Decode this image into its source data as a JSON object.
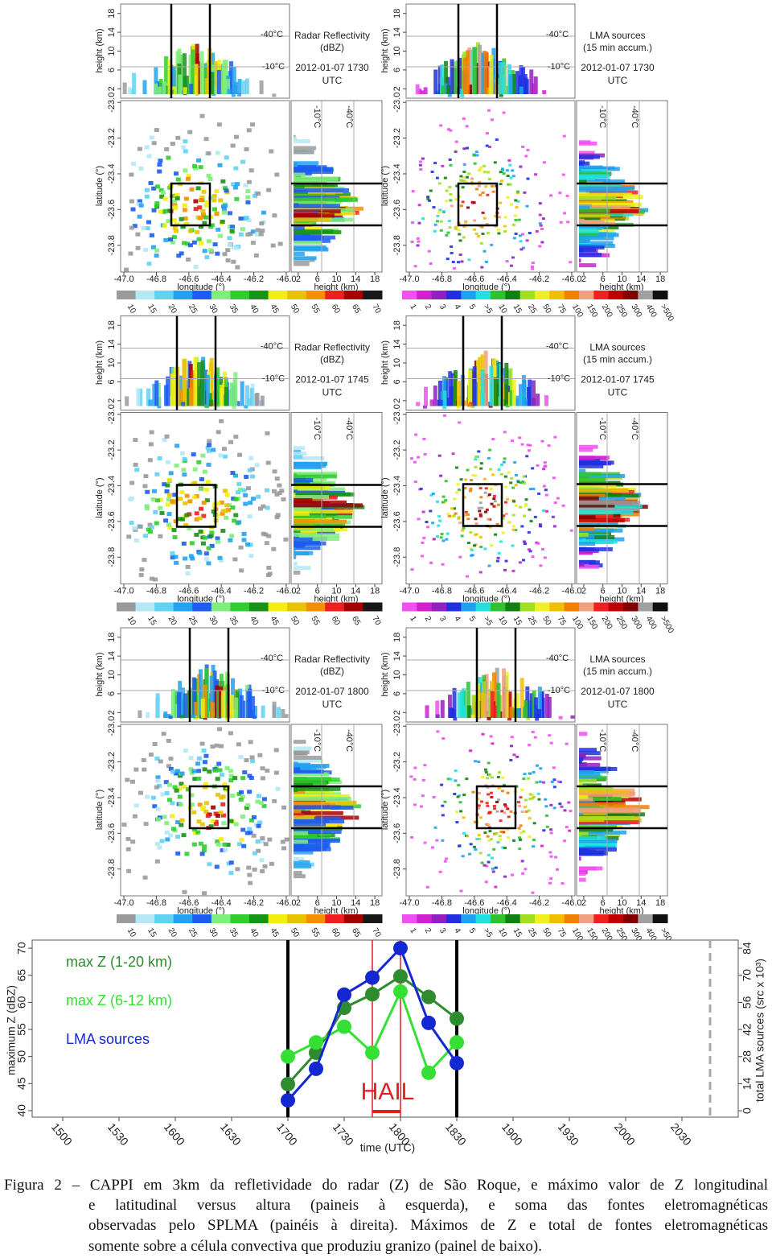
{
  "radar_panels": {
    "axes": {
      "height_label": "height (km)",
      "latitude_label": "latitude (°)",
      "longitude_label": "longitude (°)",
      "height_ticks": [
        2,
        6,
        10,
        14,
        18
      ],
      "height_lim": [
        0,
        20
      ],
      "height_xlim": [
        0.5,
        19.5
      ],
      "lat_ticks": [
        {
          "value": -23.0,
          "label": "-23.0"
        },
        -23.2,
        -23.4,
        -23.6,
        -23.8
      ],
      "lat_lim": [
        -23.95,
        -22.99
      ],
      "lon_ticks": [
        {
          "value": -47.0,
          "label": "-47.0"
        },
        -46.8,
        -46.6,
        -46.4,
        -46.2,
        {
          "value": -46.0,
          "label": "-46.0"
        }
      ],
      "lon_lim": [
        -47.02,
        -45.98
      ],
      "isotherm_warm": "-10°C",
      "isotherm_cold": "-40°C",
      "time_zone": "UTC"
    },
    "columns": [
      {
        "title": "Radar Reflectivity",
        "units": "(dBZ)",
        "colorbar_labels": [
          10,
          15,
          20,
          25,
          30,
          35,
          40,
          45,
          50,
          55,
          60,
          65,
          70
        ],
        "colorbar_colors": [
          "#9a9a9a",
          "#b4e8f4",
          "#62d2f2",
          "#22a2f0",
          "#1c5cf0",
          "#80ee7a",
          "#30cc30",
          "#169416",
          "#f2ee10",
          "#e8c400",
          "#f29000",
          "#f01e1e",
          "#a40000",
          "#181818"
        ]
      },
      {
        "title": "LMA sources",
        "units": "(15 min accum.)",
        "colorbar_labels": [
          1,
          2,
          3,
          4,
          5,
          ">5",
          10,
          15,
          25,
          50,
          75,
          100,
          150,
          200,
          250,
          300,
          400,
          ">500"
        ],
        "colorbar_colors": [
          "#f050f0",
          "#d020d0",
          "#9020c0",
          "#2030e0",
          "#20a0f0",
          "#20e0e0",
          "#30c030",
          "#108010",
          "#a0e020",
          "#f0f020",
          "#f0c000",
          "#f08000",
          "#f0a080",
          "#f02020",
          "#c00000",
          "#800000",
          "#a0a0a0",
          "#101010"
        ]
      }
    ],
    "rows": [
      {
        "time": "2012-01-07 1730"
      },
      {
        "time": "2012-01-07 1745"
      },
      {
        "time": "2012-01-07 1800"
      }
    ]
  },
  "chart_data": {
    "type": "line",
    "categories": [
      "1500",
      null,
      "1530",
      null,
      "1600",
      null,
      "1630",
      null,
      "1700",
      null,
      "1730",
      null,
      "1800",
      null,
      "1830",
      null,
      "1900",
      null,
      "1930",
      null,
      "2000",
      null,
      "2030",
      null
    ],
    "series": [
      {
        "name": "max Z (1-20 km)",
        "color": "#2e8b2e",
        "values": [
          null,
          null,
          null,
          null,
          null,
          null,
          null,
          null,
          44.9,
          50.7,
          59,
          61.5,
          64.8,
          61,
          57,
          null,
          null,
          null,
          null,
          null,
          null,
          null,
          null,
          null
        ]
      },
      {
        "name": "max Z (6-12 km)",
        "color": "#33e033",
        "values": [
          null,
          null,
          null,
          null,
          null,
          null,
          null,
          null,
          50,
          52.6,
          55.5,
          50.7,
          62,
          47,
          52.6,
          null,
          null,
          null,
          null,
          null,
          null,
          null,
          null,
          null
        ]
      },
      {
        "name": "LMA sources",
        "color": "#1428d2",
        "axis": "y2",
        "values": [
          null,
          null,
          null,
          null,
          null,
          null,
          null,
          null,
          5.4,
          21.7,
          60,
          68.8,
          84,
          45.4,
          24.6,
          null,
          null,
          null,
          null,
          null,
          null,
          null,
          null,
          null
        ]
      }
    ],
    "ylim": [
      38.8,
      71.5
    ],
    "yticks": [
      40,
      45,
      50,
      55,
      60,
      65,
      70
    ],
    "y2lim": [
      -3.3,
      88.2
    ],
    "y2ticks": [
      0,
      14,
      28,
      42,
      56,
      70,
      84
    ],
    "ylabel": "maximum Z (dBZ)",
    "y2label": "total LMA sources (src x 10³)",
    "xlabel": "time (UTC)",
    "annotation": "HAIL"
  },
  "caption": {
    "lines": [
      "Figura 2 – CAPPI em 3km da refletividade do radar (Z) de São Roque, e máximo valor de Z longitudinal",
      "e latitudinal versus altura (paineis à esquerda), e soma das fontes eletromagnéticas",
      "observadas pelo SPLMA (painéis à direita). Máximos de Z e total de fontes eletromagnéticas",
      "somente sobre a célula convectiva que produziu granizo (painel de baixo)."
    ]
  }
}
